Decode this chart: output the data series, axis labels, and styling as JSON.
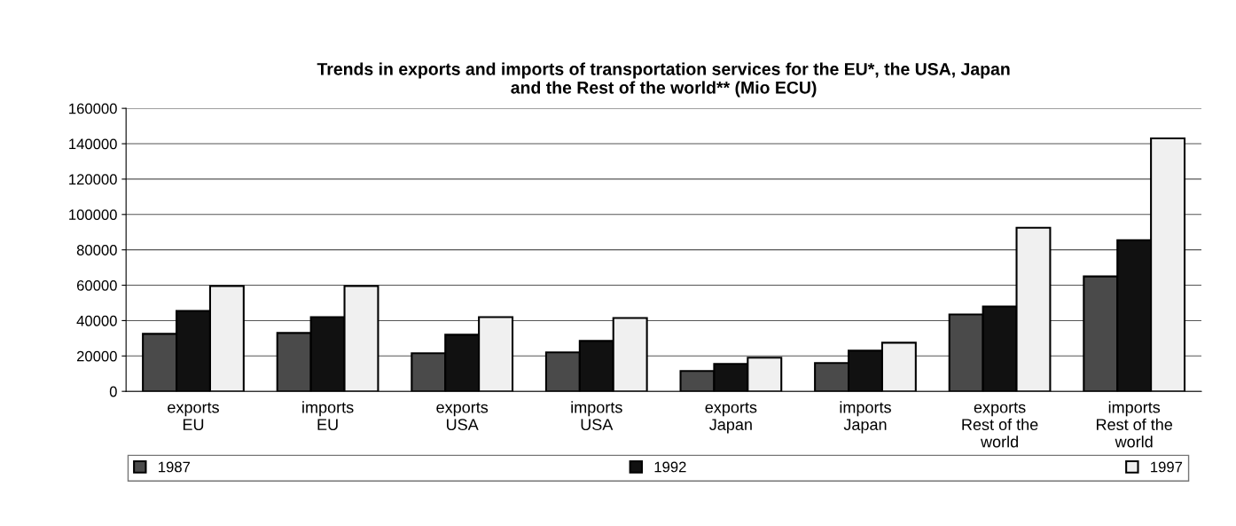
{
  "chart_data": {
    "type": "bar",
    "title": "Trends in exports and imports of transportation services for the EU*, the USA, Japan\nand the Rest of the world** (Mio ECU)",
    "categories": [
      "exports\nEU",
      "imports\nEU",
      "exports\nUSA",
      "imports\nUSA",
      "exports\nJapan",
      "imports\nJapan",
      "exports\nRest of the\nworld",
      "imports\nRest of the\nworld"
    ],
    "series": [
      {
        "name": "1987",
        "color": "#4a4a4a",
        "values": [
          32500,
          33000,
          21500,
          22000,
          11500,
          16000,
          43500,
          65000
        ]
      },
      {
        "name": "1992",
        "color": "#111111",
        "values": [
          45500,
          42000,
          32000,
          28500,
          15500,
          23000,
          48000,
          85500
        ]
      },
      {
        "name": "1997",
        "color": "#f0f0f0",
        "values": [
          59500,
          59500,
          42000,
          41500,
          19000,
          27500,
          92500,
          143000
        ]
      }
    ],
    "ylim": [
      0,
      160000
    ],
    "yticks": [
      0,
      20000,
      40000,
      60000,
      80000,
      100000,
      120000,
      140000,
      160000
    ],
    "grid": "y",
    "legend": "bottom"
  }
}
